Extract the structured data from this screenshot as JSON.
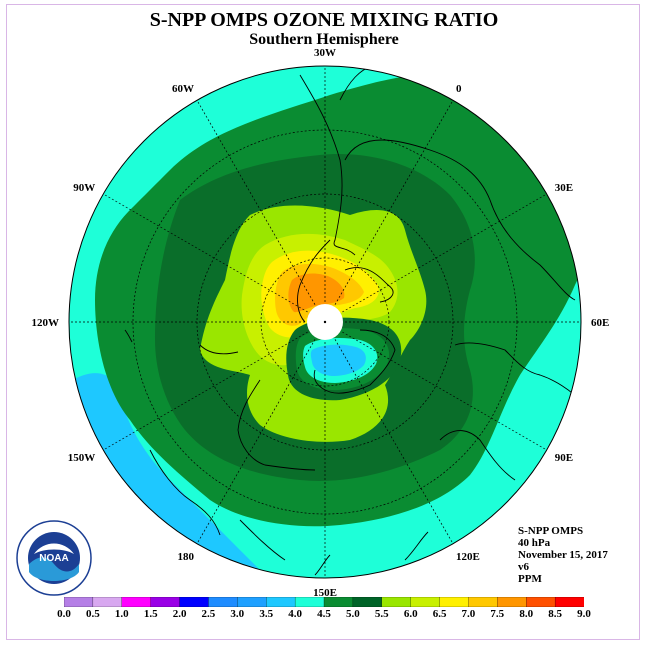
{
  "header": {
    "title": "S-NPP OMPS OZONE MIXING RATIO",
    "subtitle": "Southern Hemisphere"
  },
  "longitude_labels": [
    {
      "text": "90W",
      "angle": 150
    },
    {
      "text": "60W",
      "angle": 120
    },
    {
      "text": "30W",
      "angle": 90
    },
    {
      "text": "0",
      "angle": 60
    },
    {
      "text": "30E",
      "angle": 30
    },
    {
      "text": "60E",
      "angle": 0
    },
    {
      "text": "90E",
      "angle": -30
    },
    {
      "text": "120E",
      "angle": -60
    },
    {
      "text": "150E",
      "angle": -90
    },
    {
      "text": "180",
      "angle": -120
    },
    {
      "text": "150W",
      "angle": -150
    },
    {
      "text": "120W",
      "angle": 180
    }
  ],
  "info": {
    "instrument": "S-NPP OMPS",
    "level": "40 hPa",
    "date": "November 15, 2017",
    "version": "v6",
    "units": "PPM"
  },
  "colorbar": {
    "ticks": [
      "0.0",
      "0.5",
      "1.0",
      "1.5",
      "2.0",
      "2.5",
      "3.0",
      "3.5",
      "4.0",
      "4.5",
      "5.0",
      "5.5",
      "6.0",
      "6.5",
      "7.0",
      "7.5",
      "8.0",
      "8.5",
      "9.0"
    ],
    "colors": [
      "#b57fe6",
      "#d8a8f0",
      "#ff00ff",
      "#9a00e6",
      "#0000ff",
      "#1e8cff",
      "#1ea0ff",
      "#1ec8ff",
      "#1effd8",
      "#0a8c32",
      "#006428",
      "#9ae600",
      "#c8f000",
      "#fff000",
      "#ffc800",
      "#ff9600",
      "#ff5000",
      "#ff0000",
      "#8c5a3c"
    ]
  },
  "map_colors": {
    "band_3_0": "#1ec8ff",
    "band_3_5": "#1effd8",
    "band_4_0": "#0a8c32",
    "band_4_5": "#0a6e2a",
    "band_5_0": "#9ae600",
    "band_5_5": "#c8f000",
    "band_6_0": "#fff000",
    "band_6_5": "#ffc800",
    "band_7_0": "#ff9600"
  },
  "logo": {
    "text": "NOAA"
  }
}
